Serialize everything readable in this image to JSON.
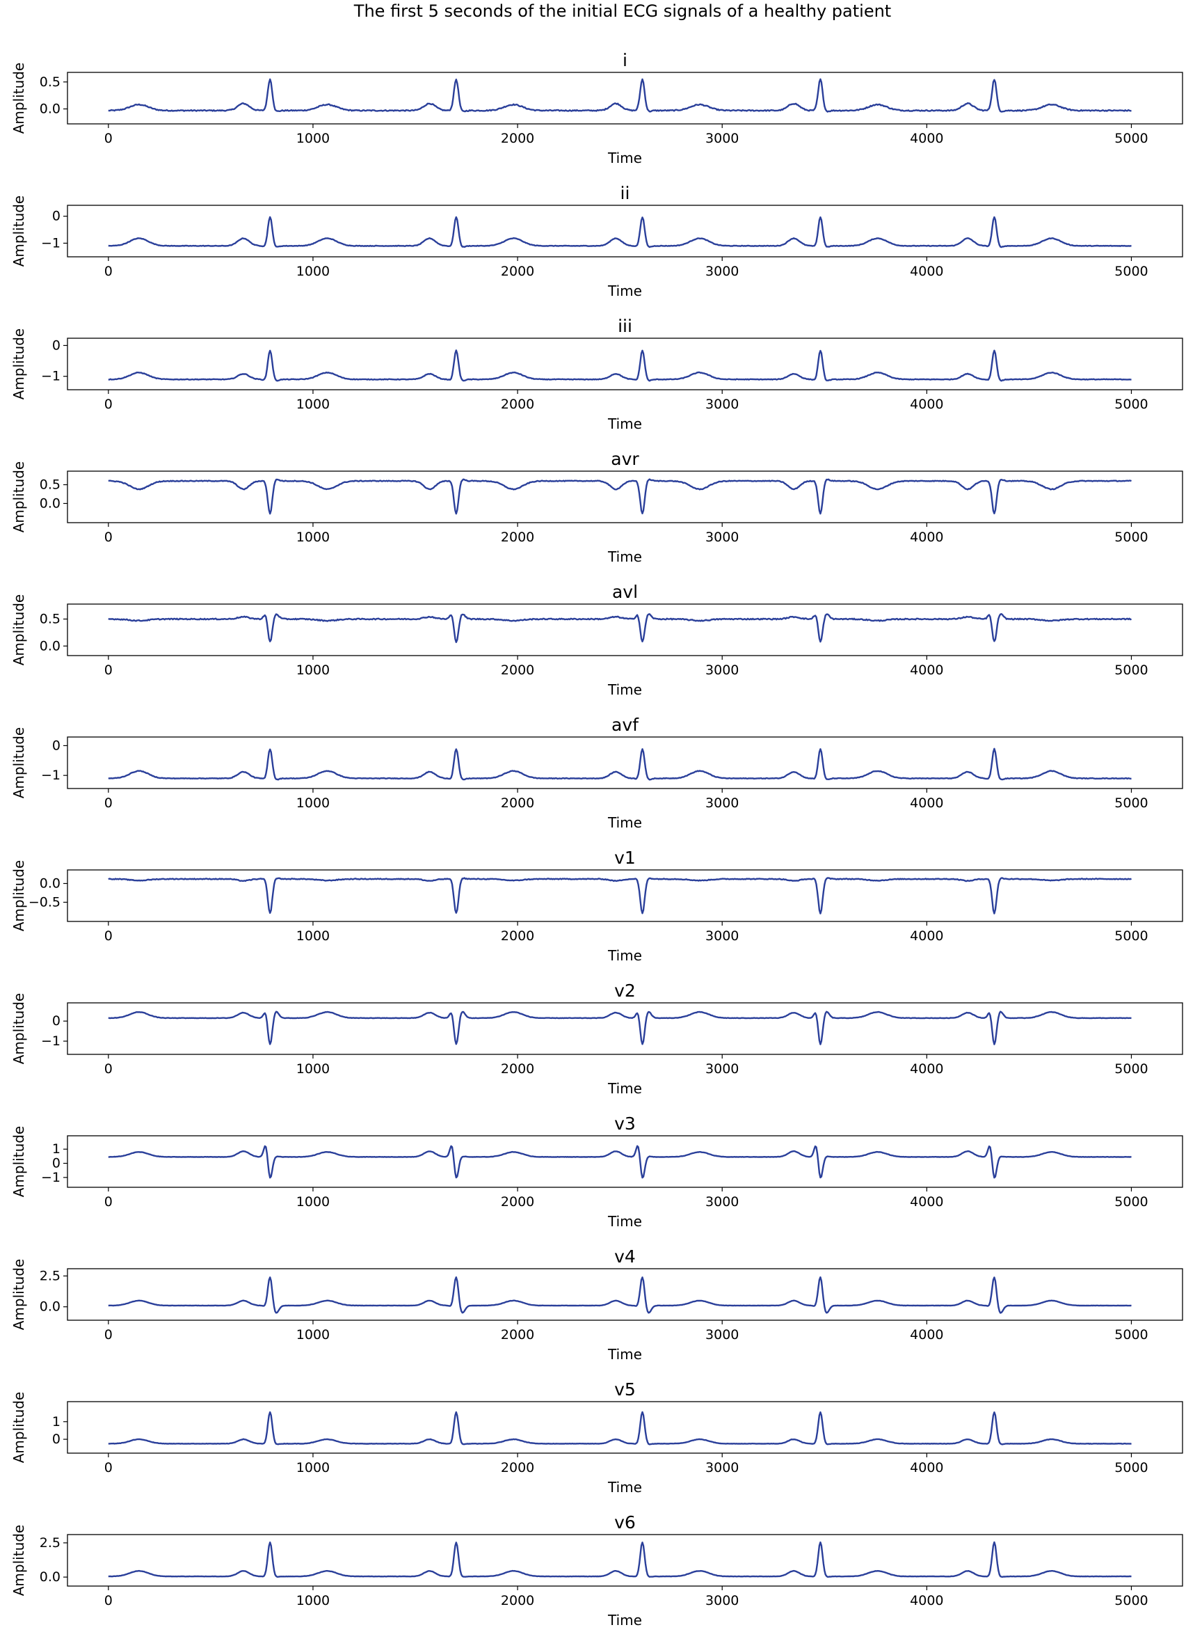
{
  "chart_data": {
    "type": "line",
    "title": "The first 5 seconds of the initial ECG signals of a healthy patient",
    "xlabel": "Time",
    "ylabel": "Amplitude",
    "xlim": [
      -200,
      5250
    ],
    "xticks": [
      0,
      1000,
      2000,
      3000,
      4000,
      5000
    ],
    "line_color": "#2a3f9a",
    "grid": false,
    "r_peak_times": [
      790,
      1700,
      2610,
      3480,
      4330
    ],
    "panels": [
      {
        "name": "i",
        "yticks": [
          0.0,
          0.5
        ],
        "yticklabels": [
          "0.0",
          "0.5"
        ],
        "ylim": [
          -0.2,
          0.6
        ],
        "baseline": -0.03,
        "p_wave": 0.1,
        "q_wave": -0.03,
        "r_peak": 0.55,
        "s_wave": -0.05,
        "t_wave": 0.08
      },
      {
        "name": "ii",
        "yticks": [
          -1,
          0
        ],
        "yticklabels": [
          "−1",
          "0"
        ],
        "ylim": [
          -1.35,
          0.25
        ],
        "baseline": -1.1,
        "p_wave": -0.82,
        "q_wave": -1.15,
        "r_peak": -0.02,
        "s_wave": -1.15,
        "t_wave": -0.82
      },
      {
        "name": "iii",
        "yticks": [
          -1,
          0
        ],
        "yticklabels": [
          "−1",
          "0"
        ],
        "ylim": [
          -1.3,
          0.1
        ],
        "baseline": -1.1,
        "p_wave": -0.92,
        "q_wave": -1.15,
        "r_peak": -0.15,
        "s_wave": -1.15,
        "t_wave": -0.88
      },
      {
        "name": "avr",
        "yticks": [
          0.0,
          0.5
        ],
        "yticklabels": [
          "0.0",
          "0.5"
        ],
        "ylim": [
          -0.4,
          0.75
        ],
        "baseline": 0.6,
        "p_wave": 0.38,
        "q_wave": 0.62,
        "r_peak": -0.28,
        "s_wave": 0.65,
        "t_wave": 0.38
      },
      {
        "name": "avl",
        "yticks": [
          0.0,
          0.5
        ],
        "yticklabels": [
          "0.0",
          "0.5"
        ],
        "ylim": [
          -0.1,
          0.7
        ],
        "baseline": 0.5,
        "p_wave": 0.54,
        "q_wave": 0.62,
        "r_peak": 0.05,
        "s_wave": 0.6,
        "t_wave": 0.47
      },
      {
        "name": "avf",
        "yticks": [
          -1,
          0
        ],
        "yticklabels": [
          "−1",
          "0"
        ],
        "ylim": [
          -1.3,
          0.15
        ],
        "baseline": -1.1,
        "p_wave": -0.88,
        "q_wave": -1.15,
        "r_peak": -0.1,
        "s_wave": -1.15,
        "t_wave": -0.85
      },
      {
        "name": "v1",
        "yticks": [
          -0.5,
          0.0
        ],
        "yticklabels": [
          "−0.5",
          "0.0"
        ],
        "ylim": [
          -0.9,
          0.25
        ],
        "baseline": 0.12,
        "p_wave": 0.07,
        "q_wave": 0.15,
        "r_peak": -0.8,
        "s_wave": 0.15,
        "t_wave": 0.08
      },
      {
        "name": "v2",
        "yticks": [
          -1,
          0
        ],
        "yticklabels": [
          "−1",
          "0"
        ],
        "ylim": [
          -1.45,
          0.7
        ],
        "baseline": 0.15,
        "p_wave": 0.42,
        "q_wave": 0.55,
        "r_peak": -1.25,
        "s_wave": 0.5,
        "t_wave": 0.45
      },
      {
        "name": "v3",
        "yticks": [
          -1,
          0,
          1
        ],
        "yticklabels": [
          "−1",
          "0",
          "1"
        ],
        "ylim": [
          -1.4,
          1.65
        ],
        "baseline": 0.45,
        "p_wave": 0.85,
        "q_wave": 1.45,
        "r_peak": -1.15,
        "s_wave": 0.5,
        "t_wave": 0.8
      },
      {
        "name": "v4",
        "yticks": [
          0.0,
          2.5
        ],
        "yticklabels": [
          "0.0",
          "2.5"
        ],
        "ylim": [
          -0.75,
          2.75
        ],
        "baseline": 0.1,
        "p_wave": 0.5,
        "q_wave": -0.05,
        "r_peak": 2.5,
        "s_wave": -0.55,
        "t_wave": 0.5
      },
      {
        "name": "v5",
        "yticks": [
          0,
          1
        ],
        "yticklabels": [
          "0",
          "1"
        ],
        "ylim": [
          -0.55,
          1.9
        ],
        "baseline": -0.25,
        "p_wave": 0.0,
        "q_wave": -0.3,
        "r_peak": 1.55,
        "s_wave": -0.3,
        "t_wave": 0.0
      },
      {
        "name": "v6",
        "yticks": [
          0.0,
          2.5
        ],
        "yticklabels": [
          "0.0",
          "2.5"
        ],
        "ylim": [
          -0.35,
          2.8
        ],
        "baseline": 0.05,
        "p_wave": 0.45,
        "q_wave": 0.0,
        "r_peak": 2.55,
        "s_wave": 0.0,
        "t_wave": 0.45
      }
    ]
  }
}
